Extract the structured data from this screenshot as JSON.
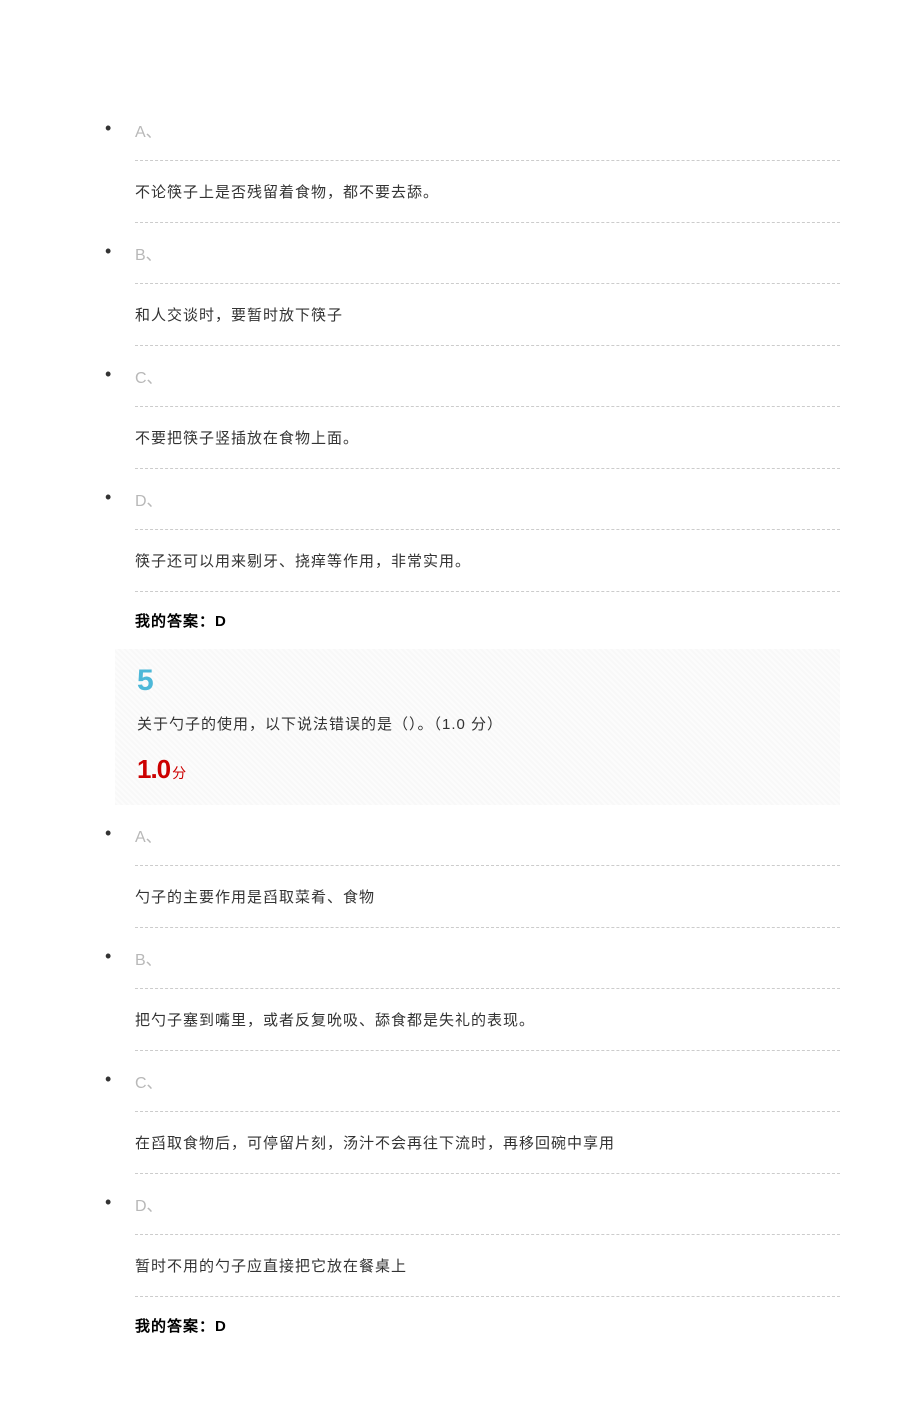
{
  "question4": {
    "options": [
      {
        "label": "A、",
        "text": "不论筷子上是否残留着食物，都不要去舔。"
      },
      {
        "label": "B、",
        "text": "和人交谈时，要暂时放下筷子"
      },
      {
        "label": "C、",
        "text": "不要把筷子竖插放在食物上面。"
      },
      {
        "label": "D、",
        "text": "筷子还可以用来剔牙、挠痒等作用，非常实用。"
      }
    ],
    "answer_label": "我的答案：",
    "answer_value": "D"
  },
  "question5": {
    "number": "5",
    "text": "关于勺子的使用，以下说法错误的是（）。（1.0 分）",
    "score": "1.0",
    "score_unit": "分",
    "options": [
      {
        "label": "A、",
        "text": "勺子的主要作用是舀取菜肴、食物"
      },
      {
        "label": "B、",
        "text": "把勺子塞到嘴里，或者反复吮吸、舔食都是失礼的表现。"
      },
      {
        "label": "C、",
        "text": "在舀取食物后，可停留片刻，汤汁不会再往下流时，再移回碗中享用"
      },
      {
        "label": "D、",
        "text": "暂时不用的勺子应直接把它放在餐桌上"
      }
    ],
    "answer_label": "我的答案：",
    "answer_value": "D"
  },
  "colors": {
    "option_label": "#b8b8b8",
    "option_text": "#333333",
    "answer_text": "#000000",
    "question_number": "#4db8d8",
    "score": "#cc0000",
    "background": "#ffffff",
    "question_bg": "#f9f9f9",
    "border": "#cccccc"
  }
}
